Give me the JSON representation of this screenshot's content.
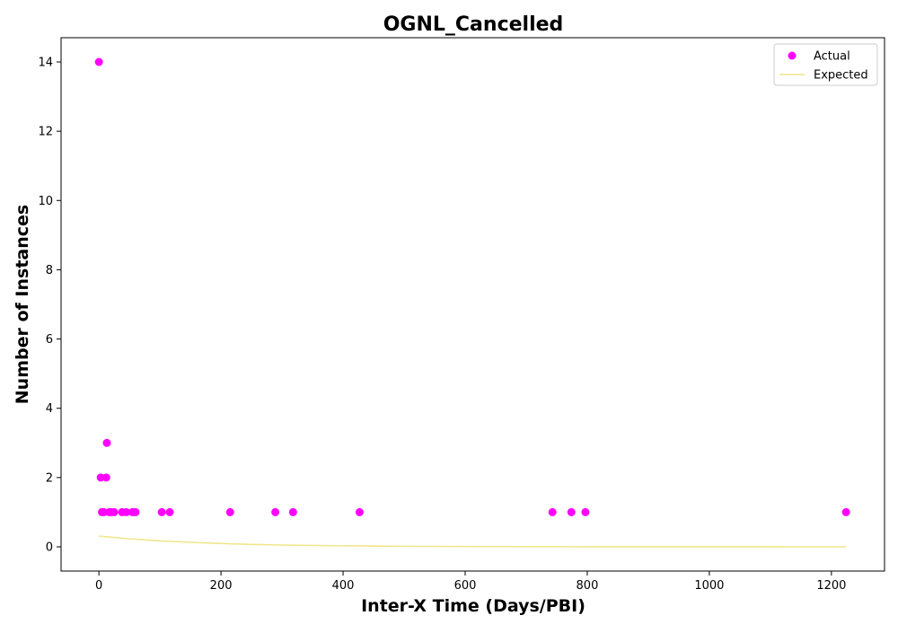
{
  "colors": {
    "actual": "#ff00ff",
    "expected": "#f0e68c",
    "axis": "#000000",
    "legend_border": "#cccccc"
  },
  "chart_data": {
    "type": "scatter",
    "title": "OGNL_Cancelled",
    "xlabel": "Inter-X Time (Days/PBI)",
    "ylabel": "Number of Instances",
    "xlim": [
      -62,
      1287
    ],
    "ylim": [
      -0.7,
      14.7
    ],
    "xticks": [
      0,
      200,
      400,
      600,
      800,
      1000,
      1200
    ],
    "yticks": [
      0,
      2,
      4,
      6,
      8,
      10,
      12,
      14
    ],
    "grid": false,
    "legend": {
      "position": "top-right",
      "entries": [
        "Actual",
        "Expected"
      ]
    },
    "series": [
      {
        "name": "Actual",
        "kind": "scatter",
        "points": [
          [
            0,
            14
          ],
          [
            3,
            2
          ],
          [
            5,
            1
          ],
          [
            8,
            1
          ],
          [
            12,
            2
          ],
          [
            13,
            3
          ],
          [
            17,
            1
          ],
          [
            20,
            1
          ],
          [
            25,
            1
          ],
          [
            38,
            1
          ],
          [
            45,
            1
          ],
          [
            55,
            1
          ],
          [
            60,
            1
          ],
          [
            103,
            1
          ],
          [
            116,
            1
          ],
          [
            215,
            1
          ],
          [
            289,
            1
          ],
          [
            318,
            1
          ],
          [
            427,
            1
          ],
          [
            743,
            1
          ],
          [
            774,
            1
          ],
          [
            797,
            1
          ],
          [
            1224,
            1
          ]
        ]
      },
      {
        "name": "Expected",
        "kind": "line",
        "x": [
          0,
          50,
          100,
          150,
          200,
          250,
          300,
          350,
          400,
          450,
          500,
          550,
          600,
          650,
          700,
          750,
          800,
          850,
          900,
          950,
          1000,
          1050,
          1100,
          1150,
          1200,
          1224
        ],
        "y": [
          0.31,
          0.23,
          0.17,
          0.13,
          0.095,
          0.07,
          0.052,
          0.039,
          0.029,
          0.021,
          0.016,
          0.012,
          0.009,
          0.0066,
          0.0049,
          0.0036,
          0.0027,
          0.002,
          0.0015,
          0.0011,
          0.0008,
          0.0006,
          0.0004,
          0.0003,
          0.0002,
          0.0002
        ]
      }
    ]
  }
}
